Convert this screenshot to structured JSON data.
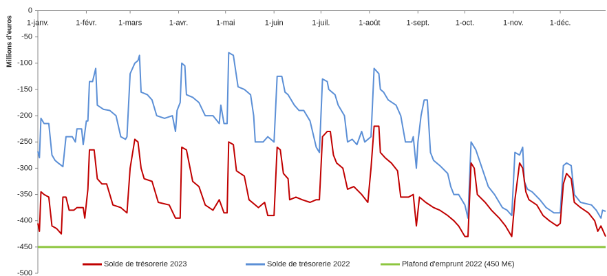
{
  "chart_data": {
    "type": "line",
    "y_label": "Millions d'euros",
    "xlim": [
      0,
      363
    ],
    "xticks": [
      {
        "value": 0,
        "label": "1-janv."
      },
      {
        "value": 31,
        "label": "1-févr."
      },
      {
        "value": 59,
        "label": "1-mars"
      },
      {
        "value": 90,
        "label": "1-avr."
      },
      {
        "value": 120,
        "label": "1-mai"
      },
      {
        "value": 151,
        "label": "1-juin"
      },
      {
        "value": 181,
        "label": "1-juil."
      },
      {
        "value": 212,
        "label": "1-août"
      },
      {
        "value": 243,
        "label": "1-sept."
      },
      {
        "value": 273,
        "label": "1-oct."
      },
      {
        "value": 304,
        "label": "1-nov."
      },
      {
        "value": 334,
        "label": "1-déc."
      }
    ],
    "ylim": [
      -500,
      0
    ],
    "yticks": [
      0,
      -50,
      -100,
      -150,
      -200,
      -250,
      -300,
      -350,
      -400,
      -450,
      -500
    ],
    "grid": false,
    "legend": "bottom",
    "series": [
      {
        "name": "Solde de trésorerie 2023",
        "color": "#c00000",
        "x": [
          0,
          1,
          2,
          4,
          7,
          9,
          12,
          15,
          16,
          18,
          20,
          23,
          25,
          29,
          30,
          32,
          33,
          36,
          38,
          41,
          44,
          48,
          53,
          57,
          59,
          62,
          64,
          66,
          68,
          73,
          77,
          84,
          88,
          91,
          92,
          95,
          99,
          103,
          107,
          112,
          116,
          119,
          121,
          122,
          125,
          127,
          132,
          135,
          141,
          145,
          147,
          151,
          153,
          155,
          157,
          160,
          161,
          165,
          169,
          174,
          178,
          180,
          182,
          185,
          187,
          189,
          191,
          195,
          198,
          202,
          207,
          211,
          213,
          215,
          218,
          219,
          222,
          226,
          230,
          232,
          237,
          240,
          242,
          244,
          248,
          253,
          257,
          262,
          266,
          269,
          273,
          275,
          277,
          279,
          281,
          286,
          290,
          295,
          299,
          303,
          305,
          308,
          310,
          312,
          314,
          319,
          323,
          327,
          332,
          334,
          336,
          338,
          341,
          343,
          347,
          352,
          356,
          358,
          360,
          363
        ],
        "values": [
          -405,
          -420,
          -345,
          -350,
          -355,
          -410,
          -415,
          -425,
          -355,
          -355,
          -380,
          -380,
          -375,
          -375,
          -395,
          -340,
          -265,
          -265,
          -320,
          -330,
          -330,
          -370,
          -375,
          -385,
          -300,
          -245,
          -250,
          -300,
          -320,
          -325,
          -365,
          -370,
          -395,
          -395,
          -260,
          -265,
          -325,
          -335,
          -370,
          -380,
          -360,
          -385,
          -385,
          -250,
          -255,
          -305,
          -315,
          -360,
          -375,
          -365,
          -390,
          -390,
          -260,
          -265,
          -310,
          -320,
          -360,
          -355,
          -360,
          -365,
          -360,
          -360,
          -240,
          -230,
          -230,
          -275,
          -290,
          -300,
          -340,
          -335,
          -350,
          -365,
          -300,
          -220,
          -220,
          -270,
          -280,
          -290,
          -305,
          -355,
          -355,
          -350,
          -410,
          -355,
          -365,
          -375,
          -380,
          -390,
          -400,
          -410,
          -430,
          -430,
          -290,
          -300,
          -350,
          -365,
          -380,
          -395,
          -410,
          -430,
          -360,
          -290,
          -300,
          -345,
          -360,
          -370,
          -390,
          -400,
          -410,
          -405,
          -330,
          -310,
          -320,
          -365,
          -375,
          -385,
          -400,
          -420,
          -410,
          -430
        ]
      },
      {
        "name": "Solde de trésorerie 2022",
        "color": "#5b8fd6",
        "x": [
          0,
          1,
          2,
          4,
          7,
          9,
          11,
          13,
          16,
          18,
          22,
          24,
          25,
          28,
          29,
          31,
          32,
          33,
          35,
          37,
          38,
          42,
          46,
          50,
          53,
          56,
          57,
          59,
          62,
          64,
          65,
          66,
          70,
          73,
          76,
          81,
          86,
          88,
          89,
          91,
          92,
          94,
          95,
          99,
          103,
          107,
          112,
          116,
          117,
          119,
          121,
          122,
          125,
          128,
          132,
          136,
          138,
          139,
          144,
          147,
          151,
          153,
          156,
          157,
          158,
          160,
          164,
          167,
          170,
          174,
          178,
          180,
          182,
          185,
          186,
          188,
          190,
          192,
          196,
          198,
          201,
          204,
          207,
          209,
          213,
          215,
          218,
          219,
          221,
          224,
          229,
          232,
          235,
          239,
          240,
          242,
          243,
          245,
          247,
          249,
          251,
          253,
          257,
          262,
          264,
          266,
          269,
          273,
          275,
          277,
          280,
          284,
          288,
          292,
          297,
          300,
          303,
          305,
          308,
          310,
          311,
          313,
          316,
          321,
          325,
          330,
          334,
          336,
          338,
          341,
          343,
          347,
          354,
          357,
          360,
          361,
          363
        ],
        "values": [
          -268,
          -280,
          -205,
          -215,
          -215,
          -275,
          -285,
          -290,
          -297,
          -240,
          -240,
          -250,
          -225,
          -225,
          -255,
          -210,
          -210,
          -135,
          -135,
          -110,
          -180,
          -188,
          -190,
          -200,
          -240,
          -245,
          -240,
          -120,
          -100,
          -95,
          -85,
          -155,
          -160,
          -170,
          -200,
          -205,
          -200,
          -230,
          -190,
          -175,
          -100,
          -105,
          -160,
          -165,
          -175,
          -200,
          -200,
          -215,
          -180,
          -215,
          -215,
          -80,
          -85,
          -145,
          -150,
          -160,
          -200,
          -250,
          -250,
          -240,
          -250,
          -125,
          -125,
          -140,
          -155,
          -160,
          -180,
          -190,
          -190,
          -210,
          -260,
          -270,
          -130,
          -135,
          -150,
          -155,
          -160,
          -180,
          -200,
          -250,
          -245,
          -255,
          -230,
          -250,
          -240,
          -110,
          -120,
          -150,
          -155,
          -170,
          -180,
          -200,
          -250,
          -250,
          -240,
          -300,
          -250,
          -200,
          -170,
          -170,
          -270,
          -285,
          -295,
          -310,
          -335,
          -350,
          -350,
          -370,
          -395,
          -250,
          -265,
          -300,
          -335,
          -350,
          -375,
          -380,
          -390,
          -270,
          -275,
          -260,
          -325,
          -340,
          -345,
          -360,
          -375,
          -385,
          -385,
          -295,
          -290,
          -295,
          -350,
          -365,
          -370,
          -380,
          -395,
          -380,
          -382
        ]
      },
      {
        "name": "Plafond d'emprunt 2022 (450 M€)",
        "color": "#8dc63f",
        "x": [
          0,
          363
        ],
        "values": [
          -450,
          -450
        ]
      }
    ]
  }
}
